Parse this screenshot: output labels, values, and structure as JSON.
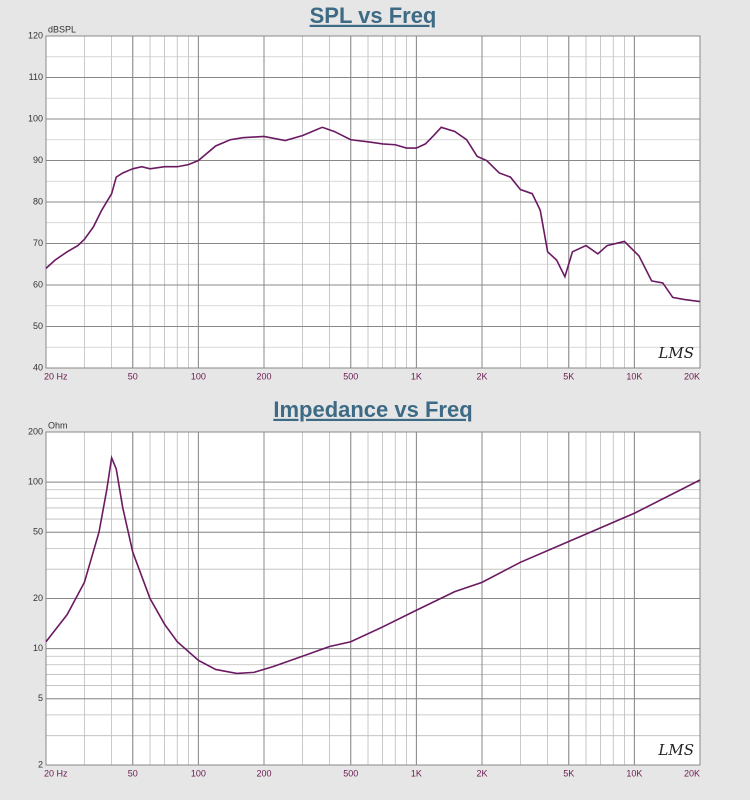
{
  "chart_data": [
    {
      "type": "line",
      "title": "SPL vs Freq",
      "y_label": "dBSPL",
      "watermark": "LMS",
      "x_log": true,
      "y_log": false,
      "grid": true,
      "xlim": [
        20,
        20000
      ],
      "xticks": [
        {
          "value": 20,
          "label": "20  Hz"
        },
        50,
        100,
        200,
        500,
        {
          "value": 1000,
          "label": "1K"
        },
        {
          "value": 2000,
          "label": "2K"
        },
        {
          "value": 5000,
          "label": "5K"
        },
        {
          "value": 10000,
          "label": "10K"
        },
        {
          "value": 20000,
          "label": "20K"
        }
      ],
      "ylim": [
        40,
        120
      ],
      "yticks": [
        40,
        50,
        60,
        70,
        80,
        90,
        100,
        110,
        120
      ],
      "x": [
        20,
        22,
        25,
        28,
        30,
        33,
        36,
        40,
        42,
        45,
        50,
        55,
        60,
        70,
        80,
        90,
        100,
        120,
        140,
        160,
        200,
        250,
        300,
        370,
        420,
        500,
        600,
        700,
        800,
        900,
        1000,
        1100,
        1200,
        1300,
        1500,
        1700,
        1900,
        2100,
        2400,
        2700,
        3000,
        3400,
        3700,
        4000,
        4400,
        4800,
        5200,
        6000,
        6800,
        7500,
        9000,
        10500,
        12000,
        13500,
        15000,
        17000,
        20000
      ],
      "series": [
        {
          "name": "SPL",
          "color": "#6b1a62",
          "values": [
            64,
            66,
            68,
            69.5,
            71,
            74,
            78,
            82,
            86,
            87,
            88,
            88.5,
            88,
            88.5,
            88.5,
            89,
            90,
            93.5,
            95,
            95.5,
            95.8,
            94.8,
            96,
            98,
            97,
            95,
            94.5,
            94,
            93.8,
            93,
            93,
            94,
            96,
            98,
            97,
            95,
            91,
            90,
            87,
            86,
            83,
            82,
            78,
            68,
            66,
            62,
            68,
            69.5,
            67.5,
            69.5,
            70.5,
            67,
            61,
            60.5,
            57,
            56.5,
            56
          ]
        }
      ]
    },
    {
      "type": "line",
      "title": "Impedance vs Freq",
      "y_label": "Ohm",
      "watermark": "LMS",
      "x_log": true,
      "y_log": true,
      "grid": true,
      "xlim": [
        20,
        20000
      ],
      "xticks": [
        {
          "value": 20,
          "label": "20  Hz"
        },
        50,
        100,
        200,
        500,
        {
          "value": 1000,
          "label": "1K"
        },
        {
          "value": 2000,
          "label": "2K"
        },
        {
          "value": 5000,
          "label": "5K"
        },
        {
          "value": 10000,
          "label": "10K"
        },
        {
          "value": 20000,
          "label": "20K"
        }
      ],
      "ylim": [
        2,
        200
      ],
      "yticks": [
        2,
        5,
        10,
        20,
        50,
        100,
        200
      ],
      "x": [
        20,
        25,
        30,
        35,
        38,
        40,
        42,
        45,
        50,
        60,
        70,
        80,
        100,
        120,
        150,
        180,
        220,
        300,
        400,
        500,
        700,
        1000,
        1500,
        2000,
        3000,
        5000,
        10000,
        20000
      ],
      "series": [
        {
          "name": "Impedance",
          "color": "#6b1a62",
          "values": [
            11,
            16,
            25,
            50,
            90,
            140,
            120,
            70,
            38,
            20,
            14,
            11,
            8.5,
            7.5,
            7.1,
            7.2,
            7.8,
            9,
            10.3,
            11,
            13.5,
            17,
            22,
            25,
            33,
            44,
            65,
            103
          ]
        }
      ]
    }
  ]
}
